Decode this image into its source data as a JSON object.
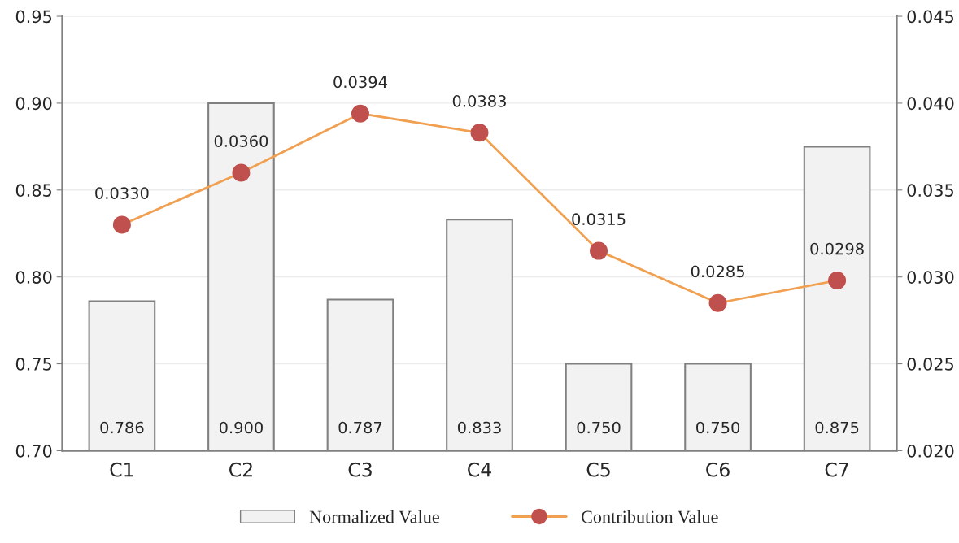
{
  "chart_data": {
    "type": "bar",
    "categories": [
      "C1",
      "C2",
      "C3",
      "C4",
      "C5",
      "C6",
      "C7"
    ],
    "series": [
      {
        "name": "Normalized Value",
        "color": "#f2f2f2",
        "values": [
          0.786,
          0.9,
          0.787,
          0.833,
          0.75,
          0.75,
          0.875
        ],
        "value_labels": [
          "0.786",
          "0.900",
          "0.787",
          "0.833",
          "0.750",
          "0.750",
          "0.875"
        ]
      },
      {
        "name": "Contribution Value",
        "type": "line",
        "axis": "y2",
        "color": "#f0a050",
        "marker": "circle",
        "values": [
          0.033,
          0.036,
          0.0394,
          0.0383,
          0.0315,
          0.0285,
          0.0298
        ],
        "value_labels": [
          "0.0330",
          "0.0360",
          "0.0394",
          "0.0383",
          "0.0315",
          "0.0285",
          "0.0298"
        ]
      }
    ],
    "ylim": [
      0.7,
      0.95
    ],
    "yticks": [
      {
        "value": 0.7,
        "label": "0.70"
      },
      {
        "value": 0.75,
        "label": "0.75"
      },
      {
        "value": 0.8,
        "label": "0.80"
      },
      {
        "value": 0.85,
        "label": "0.85"
      },
      {
        "value": 0.9,
        "label": "0.90"
      },
      {
        "value": 0.95,
        "label": "0.95"
      }
    ],
    "y2lim": [
      0.02,
      0.045
    ],
    "y2ticks": [
      {
        "value": 0.02,
        "label": "0.020"
      },
      {
        "value": 0.025,
        "label": "0.025"
      },
      {
        "value": 0.03,
        "label": "0.030"
      },
      {
        "value": 0.035,
        "label": "0.035"
      },
      {
        "value": 0.04,
        "label": "0.040"
      },
      {
        "value": 0.045,
        "label": "0.045"
      }
    ],
    "grid": "y",
    "legend": "bottom"
  }
}
